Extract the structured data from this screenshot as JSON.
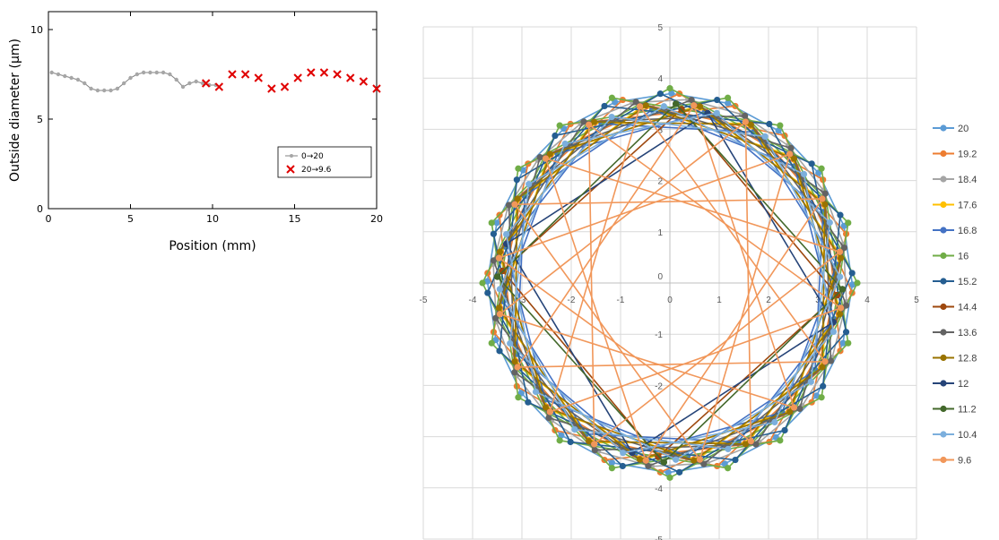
{
  "chart_data": [
    {
      "type": "scatter",
      "xlabel": "Position (mm)",
      "ylabel": "Outside diameter (µm)",
      "xlim": [
        0,
        20
      ],
      "ylim": [
        0,
        11
      ],
      "xticks": [
        "0",
        "5",
        "10",
        "15",
        "20"
      ],
      "yticks": [
        "0",
        "5",
        "10"
      ],
      "legend_position": "bottom-right",
      "series": [
        {
          "name": "0→20",
          "color": "#a6a6a6",
          "marker": "circle",
          "x": [
            0.2,
            0.6,
            1.0,
            1.4,
            1.8,
            2.2,
            2.6,
            3.0,
            3.4,
            3.8,
            4.2,
            4.6,
            5.0,
            5.4,
            5.8,
            6.2,
            6.6,
            7.0,
            7.4,
            7.8,
            8.2,
            8.6,
            9.0,
            9.4,
            9.8,
            10.2
          ],
          "y": [
            7.6,
            7.5,
            7.4,
            7.3,
            7.2,
            7.0,
            6.7,
            6.6,
            6.6,
            6.6,
            6.7,
            7.0,
            7.3,
            7.5,
            7.6,
            7.6,
            7.6,
            7.6,
            7.5,
            7.2,
            6.8,
            7.0,
            7.1,
            7.0,
            6.9,
            6.9
          ]
        },
        {
          "name": "20→9.6",
          "color": "#e00000",
          "marker": "x",
          "x": [
            20.0,
            19.2,
            18.4,
            17.6,
            16.8,
            16.0,
            15.2,
            14.4,
            13.6,
            12.8,
            12.0,
            11.2,
            10.4,
            9.6
          ],
          "y": [
            6.7,
            7.1,
            7.3,
            7.5,
            7.6,
            7.6,
            7.3,
            6.8,
            6.7,
            7.3,
            7.5,
            7.5,
            6.8,
            7.0
          ]
        }
      ]
    },
    {
      "type": "line",
      "xlim": [
        -5,
        5
      ],
      "ylim": [
        -5,
        5
      ],
      "xticks": [
        "-5",
        "-4",
        "-3",
        "-2",
        "-1",
        "0",
        "1",
        "2",
        "3",
        "4",
        "5"
      ],
      "yticks": [
        "5",
        "4",
        "3",
        "2",
        "1",
        "0",
        "-1",
        "-2",
        "-3",
        "-4",
        "-5"
      ],
      "grid": true,
      "legend_position": "right",
      "points_per_series": 20,
      "series": [
        {
          "name": "20",
          "color": "#5b9bd5",
          "radius": 3.7,
          "rotation": 0.5,
          "skip": 1
        },
        {
          "name": "19.2",
          "color": "#ed7d31",
          "radius": 3.7,
          "rotation": 3.0,
          "skip": 3
        },
        {
          "name": "18.4",
          "color": "#a5a5a5",
          "radius": 3.6,
          "rotation": 6.0,
          "skip": 1
        },
        {
          "name": "17.6",
          "color": "#ffc000",
          "radius": 3.5,
          "rotation": 9.0,
          "skip": 3
        },
        {
          "name": "16.8",
          "color": "#4472c4",
          "radius": 3.4,
          "rotation": 12.0,
          "skip": 3
        },
        {
          "name": "16",
          "color": "#70ad47",
          "radius": 3.8,
          "rotation": 0.0,
          "skip": 3
        },
        {
          "name": "15.2",
          "color": "#255e91",
          "radius": 3.7,
          "rotation": 15.0,
          "skip": 3
        },
        {
          "name": "14.4",
          "color": "#9e480e",
          "radius": 3.4,
          "rotation": 4.0,
          "skip": 5
        },
        {
          "name": "13.6",
          "color": "#636363",
          "radius": 3.6,
          "rotation": 7.0,
          "skip": 3
        },
        {
          "name": "12.8",
          "color": "#997300",
          "radius": 3.5,
          "rotation": 10.0,
          "skip": 3
        },
        {
          "name": "12",
          "color": "#264478",
          "radius": 3.4,
          "rotation": 13.0,
          "skip": 5
        },
        {
          "name": "11.2",
          "color": "#43682b",
          "radius": 3.5,
          "rotation": 2.0,
          "skip": 5
        },
        {
          "name": "10.4",
          "color": "#7cafdd",
          "radius": 3.45,
          "rotation": 16.0,
          "skip": 3
        },
        {
          "name": "9.6",
          "color": "#f1975a",
          "radius": 3.5,
          "rotation": 8.0,
          "skip": 7
        }
      ]
    }
  ]
}
